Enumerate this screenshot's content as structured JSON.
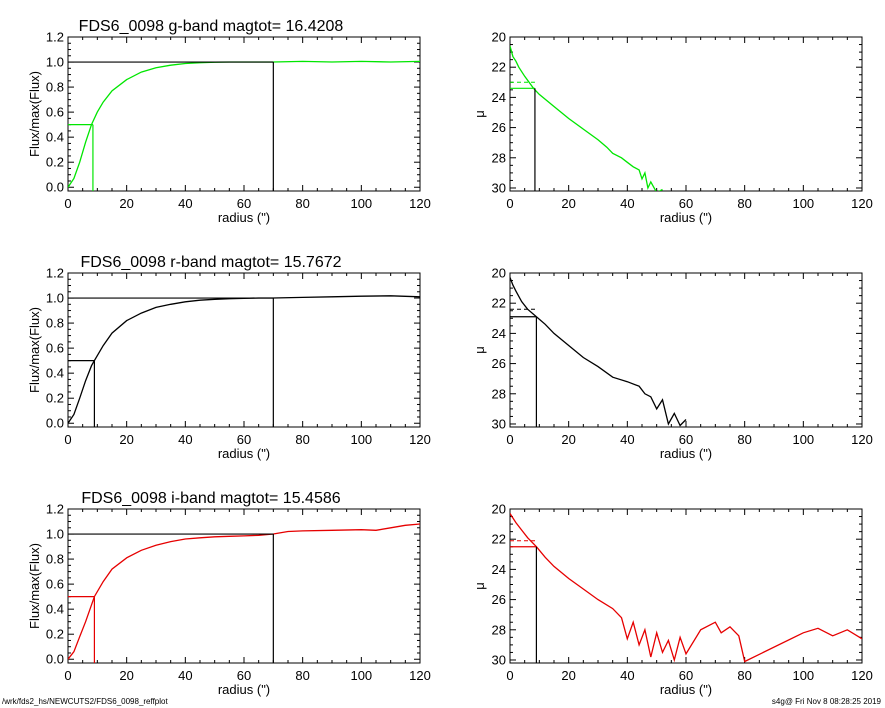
{
  "footer": {
    "path": "/wrk/fds2_hs/NEWCUTS2/FDS6_0098_reffplot",
    "stamp": "s4g@  Fri Nov  8 08:28:25 2019"
  },
  "colors": {
    "g": "#00e600",
    "r": "#000000",
    "i": "#e60000",
    "axes": "#000000"
  },
  "chart_data": [
    {
      "type": "line",
      "band": "g",
      "title": "FDS6_0098 g-band  magtot=     16.4208",
      "xlabel": "radius (\")",
      "ylabel": "Flux/max(Flux)",
      "xlim": [
        0,
        120
      ],
      "ylim": [
        -0.03,
        1.2
      ],
      "xticks": [
        "0",
        "20",
        "40",
        "60",
        "80",
        "100",
        "120"
      ],
      "yticks": [
        "0.0",
        "0.2",
        "0.4",
        "0.6",
        "0.8",
        "1.0",
        "1.2"
      ],
      "series": [
        {
          "x": [
            0,
            2,
            4,
            6,
            8,
            10,
            12,
            15,
            20,
            25,
            30,
            35,
            40,
            45,
            50,
            55,
            60,
            65,
            70,
            80,
            90,
            100,
            110,
            120
          ],
          "y": [
            0.0,
            0.07,
            0.2,
            0.36,
            0.5,
            0.6,
            0.68,
            0.77,
            0.86,
            0.92,
            0.955,
            0.975,
            0.988,
            0.995,
            0.999,
            1.0,
            1.0,
            1.0,
            1.0,
            1.005,
            1.0,
            1.005,
            1.0,
            1.005
          ]
        }
      ],
      "markers": {
        "half_light_radius": 8.5,
        "half_flux": 0.5,
        "total_radius": 70,
        "total_flux": 1.0
      }
    },
    {
      "type": "line",
      "band": "g",
      "xlabel": "radius (\")",
      "ylabel": "μ",
      "xlim": [
        0,
        120
      ],
      "ylim": [
        30.2,
        20
      ],
      "yinverted": true,
      "xticks": [
        "0",
        "20",
        "40",
        "60",
        "80",
        "100",
        "120"
      ],
      "yticks": [
        "20",
        "22",
        "24",
        "26",
        "28",
        "30"
      ],
      "series": [
        {
          "x": [
            0,
            1,
            2,
            3,
            5,
            8,
            10,
            15,
            20,
            25,
            30,
            33,
            35,
            38,
            40,
            42,
            44,
            45,
            46,
            47,
            48,
            50,
            52
          ],
          "y": [
            20.6,
            21.3,
            21.6,
            22.0,
            22.6,
            23.4,
            23.8,
            24.6,
            25.4,
            26.1,
            26.8,
            27.3,
            27.7,
            28.0,
            28.3,
            28.6,
            28.8,
            29.4,
            29.0,
            30.0,
            29.6,
            30.3,
            30.1
          ]
        }
      ],
      "markers": {
        "reff": 8.5,
        "mu_reff": 23.4,
        "mu_mean": 23.0
      }
    },
    {
      "type": "line",
      "band": "r",
      "title": "FDS6_0098 r-band  magtot=     15.7672",
      "xlabel": "radius (\")",
      "ylabel": "Flux/max(Flux)",
      "xlim": [
        0,
        120
      ],
      "ylim": [
        -0.03,
        1.2
      ],
      "xticks": [
        "0",
        "20",
        "40",
        "60",
        "80",
        "100",
        "120"
      ],
      "yticks": [
        "0.0",
        "0.2",
        "0.4",
        "0.6",
        "0.8",
        "1.0",
        "1.2"
      ],
      "series": [
        {
          "x": [
            0,
            2,
            4,
            6,
            8,
            9,
            12,
            15,
            20,
            25,
            30,
            35,
            40,
            45,
            50,
            55,
            60,
            65,
            70,
            80,
            90,
            100,
            110,
            120
          ],
          "y": [
            0.0,
            0.07,
            0.2,
            0.34,
            0.46,
            0.5,
            0.62,
            0.72,
            0.82,
            0.88,
            0.925,
            0.95,
            0.97,
            0.983,
            0.99,
            0.995,
            0.998,
            1.0,
            1.0,
            1.005,
            1.01,
            1.015,
            1.018,
            1.01
          ]
        }
      ],
      "markers": {
        "half_light_radius": 9,
        "half_flux": 0.5,
        "total_radius": 70,
        "total_flux": 1.0
      }
    },
    {
      "type": "line",
      "band": "r",
      "xlabel": "radius (\")",
      "ylabel": "μ",
      "xlim": [
        0,
        120
      ],
      "ylim": [
        30.2,
        20
      ],
      "yinverted": true,
      "xticks": [
        "0",
        "20",
        "40",
        "60",
        "80",
        "100",
        "120"
      ],
      "yticks": [
        "20",
        "22",
        "24",
        "26",
        "28",
        "30"
      ],
      "series": [
        {
          "x": [
            0,
            1,
            2,
            4,
            6,
            9,
            12,
            15,
            20,
            25,
            30,
            35,
            40,
            44,
            46,
            48,
            50,
            52,
            54,
            56,
            58,
            60
          ],
          "y": [
            20.3,
            20.8,
            21.2,
            21.9,
            22.4,
            22.9,
            23.4,
            24.0,
            24.8,
            25.6,
            26.2,
            26.9,
            27.2,
            27.5,
            28.0,
            28.2,
            29.0,
            28.4,
            30.0,
            29.3,
            30.1,
            29.7
          ]
        }
      ],
      "markers": {
        "reff": 9,
        "mu_reff": 22.9,
        "mu_mean": 22.4
      }
    },
    {
      "type": "line",
      "band": "i",
      "title": "FDS6_0098 i-band  magtot=     15.4586",
      "xlabel": "radius (\")",
      "ylabel": "Flux/max(Flux)",
      "xlim": [
        0,
        120
      ],
      "ylim": [
        -0.03,
        1.2
      ],
      "xticks": [
        "0",
        "20",
        "40",
        "60",
        "80",
        "100",
        "120"
      ],
      "yticks": [
        "0.0",
        "0.2",
        "0.4",
        "0.6",
        "0.8",
        "1.0",
        "1.2"
      ],
      "series": [
        {
          "x": [
            0,
            2,
            4,
            6,
            9,
            12,
            15,
            20,
            25,
            30,
            35,
            40,
            45,
            50,
            55,
            60,
            65,
            70,
            75,
            80,
            90,
            100,
            105,
            110,
            115,
            120
          ],
          "y": [
            0.0,
            0.06,
            0.18,
            0.3,
            0.5,
            0.62,
            0.72,
            0.81,
            0.87,
            0.91,
            0.94,
            0.96,
            0.97,
            0.978,
            0.982,
            0.985,
            0.99,
            1.0,
            1.02,
            1.025,
            1.03,
            1.035,
            1.03,
            1.05,
            1.07,
            1.08
          ]
        }
      ],
      "markers": {
        "half_light_radius": 9,
        "half_flux": 0.5,
        "total_radius": 70,
        "total_flux": 1.0
      }
    },
    {
      "type": "line",
      "band": "i",
      "xlabel": "radius (\")",
      "ylabel": "μ",
      "xlim": [
        0,
        120
      ],
      "ylim": [
        30.2,
        20
      ],
      "yinverted": true,
      "xticks": [
        "0",
        "20",
        "40",
        "60",
        "80",
        "100",
        "120"
      ],
      "yticks": [
        "20",
        "22",
        "24",
        "26",
        "28",
        "30"
      ],
      "series": [
        {
          "x": [
            0,
            2,
            4,
            6,
            9,
            12,
            15,
            20,
            25,
            30,
            35,
            38,
            40,
            42,
            44,
            46,
            48,
            50,
            52,
            54,
            56,
            58,
            60,
            65,
            70,
            72,
            75,
            78,
            80,
            100,
            105,
            110,
            115,
            120
          ],
          "y": [
            20.3,
            20.9,
            21.4,
            21.9,
            22.5,
            23.2,
            23.8,
            24.6,
            25.3,
            26.0,
            26.6,
            27.2,
            28.6,
            27.5,
            29.0,
            28.0,
            29.8,
            28.2,
            29.5,
            28.7,
            30.0,
            28.5,
            29.6,
            28.0,
            27.5,
            28.2,
            27.8,
            28.4,
            30.1,
            28.2,
            27.9,
            28.4,
            28.0,
            28.6
          ]
        }
      ],
      "markers": {
        "reff": 9,
        "mu_reff": 22.5,
        "mu_mean": 22.1
      }
    }
  ]
}
